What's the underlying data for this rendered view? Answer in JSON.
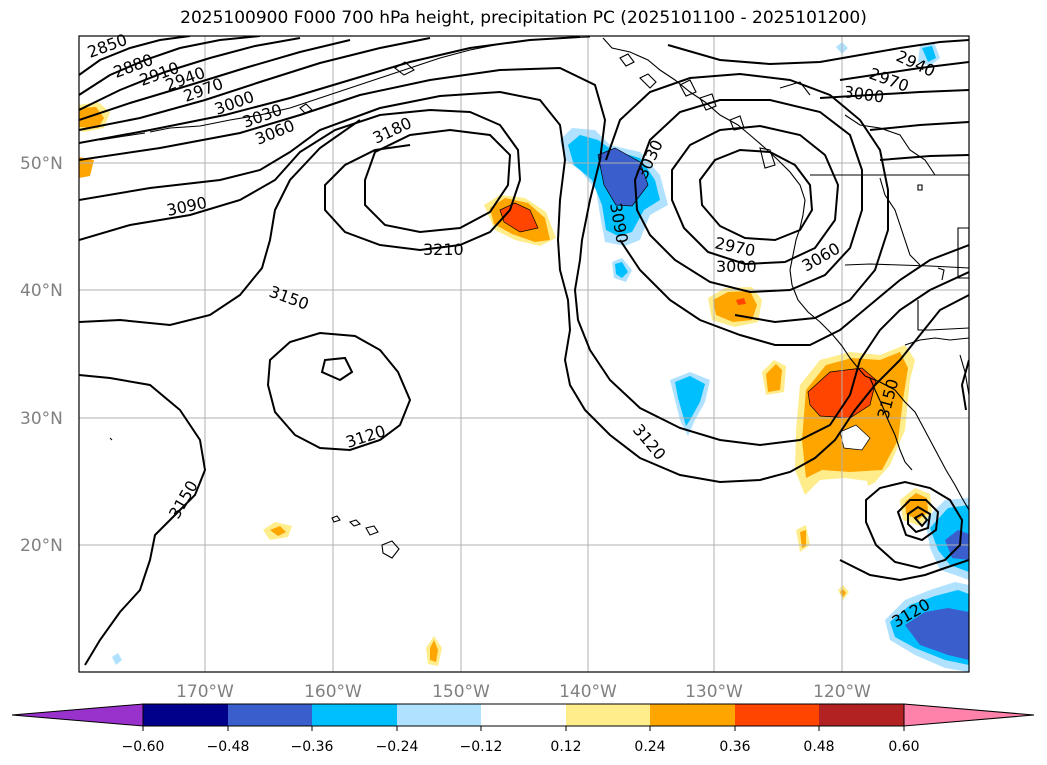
{
  "title": "2025100900 F000 700 hPa height, precipitation PC (2025101100 - 2025101200)",
  "map": {
    "lat_ticks": [
      "50°N",
      "40°N",
      "30°N",
      "20°N"
    ],
    "lon_ticks": [
      "170°W",
      "160°W",
      "150°W",
      "140°W",
      "130°W",
      "120°W"
    ]
  },
  "contour_labels": {
    "c2850": "2850",
    "c2880": "2880",
    "c2910": "2910",
    "c2940": "2940",
    "c2970": "2970",
    "c3000": "3000",
    "c3030": "3030",
    "c3060": "3060",
    "c3090": "3090",
    "c3180": "3180",
    "c3210": "3210",
    "c3150a": "3150",
    "c3120a": "3120",
    "c3150b": "3150",
    "c3090b": "3090",
    "c3030b": "3030",
    "c2970b": "2970",
    "c3000b": "3000",
    "c3060b": "3060",
    "c3120b": "3120",
    "c3150c": "3150",
    "c3120c": "3120",
    "c2940b": "2940",
    "c2970c": "2970",
    "c3000c": "3000"
  },
  "colorbar": {
    "ticks": [
      "−0.60",
      "−0.48",
      "−0.36",
      "−0.24",
      "−0.12",
      "0.12",
      "0.24",
      "0.36",
      "0.48",
      "0.60"
    ],
    "colors": [
      "#9932cc",
      "#00008b",
      "#3a5fcd",
      "#00bfff",
      "#b0e2ff",
      "#ffffff",
      "#ffec8b",
      "#ffa500",
      "#ff4500",
      "#b22222",
      "#ff82ab"
    ]
  }
}
